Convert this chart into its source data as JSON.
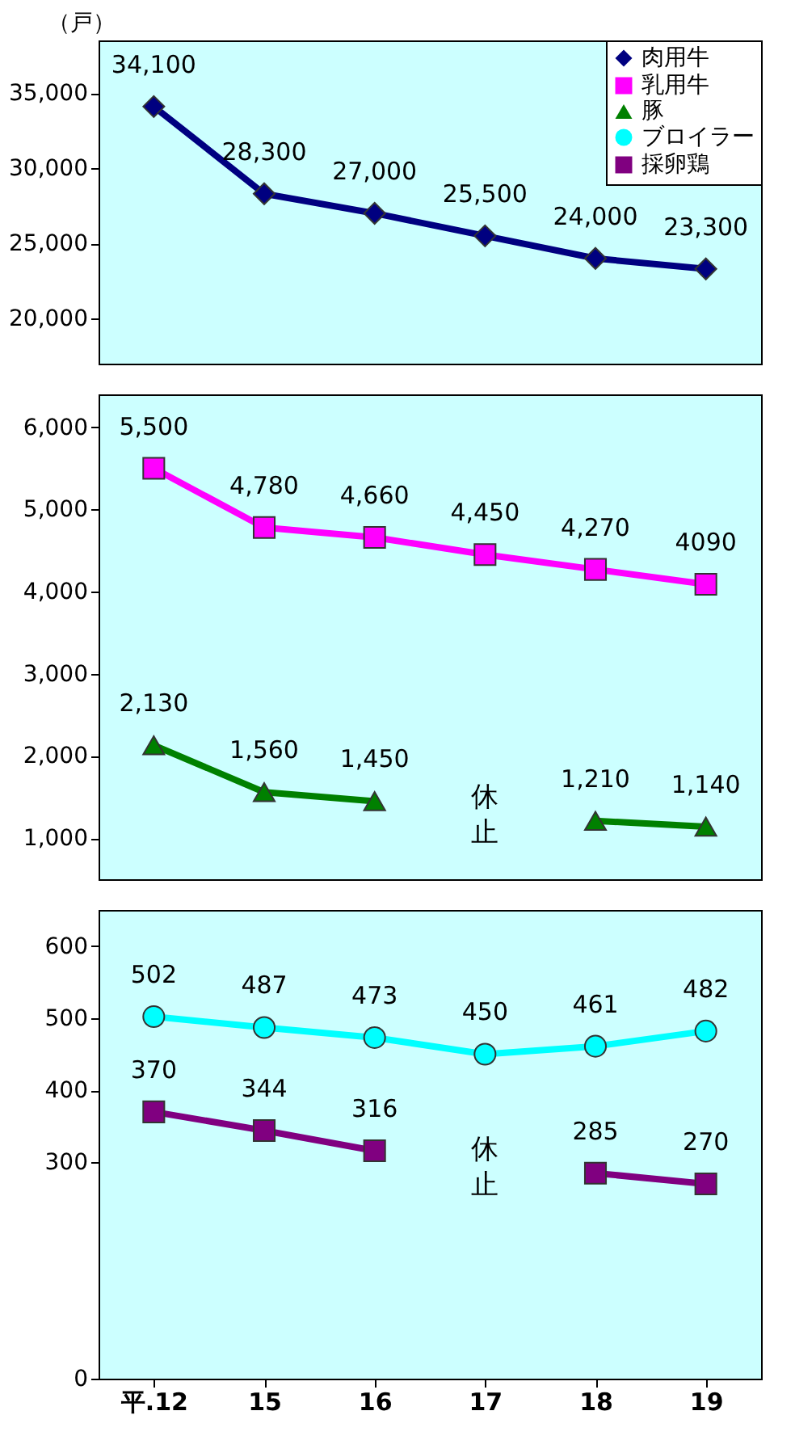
{
  "chart_data": [
    {
      "type": "line",
      "ylabel": "（戸）",
      "ylim": [
        17000,
        38500
      ],
      "yticks": [
        {
          "value": 20000,
          "label": "20,000"
        },
        {
          "value": 25000,
          "label": "25,000"
        },
        {
          "value": 30000,
          "label": "30,000"
        },
        {
          "value": 35000,
          "label": "35,000"
        }
      ],
      "tick_labels": "y",
      "legend": "top right",
      "grid": false,
      "series": [
        {
          "name": "肉用牛",
          "color": "#000080",
          "marker": "diamond",
          "values": [
            34100,
            28300,
            27000,
            25500,
            24000,
            23300
          ],
          "value_labels": [
            "34,100",
            "28,300",
            "27,000",
            "25,500",
            "24,000",
            "23,300"
          ]
        }
      ]
    },
    {
      "type": "line",
      "ylim": [
        500,
        6400
      ],
      "yticks": [
        {
          "value": 1000,
          "label": "1,000"
        },
        {
          "value": 2000,
          "label": "2,000"
        },
        {
          "value": 3000,
          "label": "3,000"
        },
        {
          "value": 4000,
          "label": "4,000"
        },
        {
          "value": 5000,
          "label": "5,000"
        },
        {
          "value": 6000,
          "label": "6,000"
        }
      ],
      "tick_labels": "y",
      "legend": "top right",
      "grid": false,
      "annotations": [
        "休止"
      ],
      "series": [
        {
          "name": "乳用牛",
          "color": "#ff00ff",
          "marker": "square",
          "values": [
            5500,
            4780,
            4660,
            4450,
            4270,
            4090
          ],
          "value_labels": [
            "5,500",
            "4,780",
            "4,660",
            "4,450",
            "4,270",
            "4090"
          ]
        },
        {
          "name": "豚",
          "color": "#008000",
          "marker": "triangle",
          "values": [
            2130,
            1560,
            1450,
            null,
            1210,
            1140
          ],
          "value_labels": [
            "2,130",
            "1,560",
            "1,450",
            null,
            "1,210",
            "1,140"
          ]
        }
      ]
    },
    {
      "type": "line",
      "categories": [
        "平.12",
        "15",
        "16",
        "17",
        "18",
        "19"
      ],
      "ylim": [
        0,
        650
      ],
      "yticks": [
        0,
        300,
        400,
        500,
        600
      ],
      "legend": "top right",
      "grid": false,
      "annotations": [
        "休止"
      ],
      "series": [
        {
          "name": "ブロイラー",
          "color": "#00ffff",
          "marker": "circle",
          "values": [
            502,
            487,
            473,
            450,
            461,
            482
          ],
          "value_labels": [
            "502",
            "487",
            "473",
            "450",
            "461",
            "482"
          ]
        },
        {
          "name": "採卵鶏",
          "color": "#800080",
          "marker": "square",
          "values": [
            370,
            344,
            316,
            null,
            285,
            270
          ],
          "value_labels": [
            "370",
            "344",
            "316",
            null,
            "285",
            "270"
          ]
        }
      ]
    }
  ]
}
